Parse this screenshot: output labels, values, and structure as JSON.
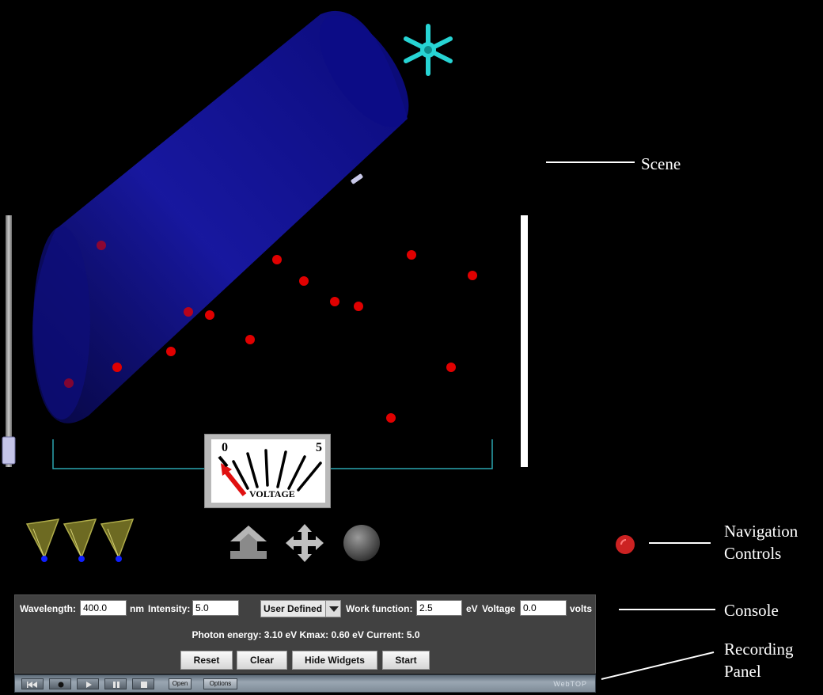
{
  "annotations": {
    "scene": "Scene",
    "navigation_line1": "Navigation",
    "navigation_line2": "Controls",
    "console": "Console",
    "recording_line1": "Recording",
    "recording_line2": "Panel"
  },
  "meter": {
    "min_label": "0",
    "max_label": "5",
    "caption": "VOLTAGE",
    "value": 0.0
  },
  "console": {
    "wavelength_label": "Wavelength:",
    "wavelength_value": "400.0",
    "wavelength_unit": "nm",
    "intensity_label": "Intensity:",
    "intensity_value": "5.0",
    "material_selected": "User Defined",
    "work_function_label": "Work function:",
    "work_function_value": "2.5",
    "work_function_unit": "eV",
    "voltage_label": "Voltage",
    "voltage_value": "0.0",
    "voltage_unit": "volts",
    "readout": "Photon energy: 3.10  eV Kmax: 0.60  eV Current: 5.0",
    "buttons": {
      "reset": "Reset",
      "clear": "Clear",
      "hide_widgets": "Hide Widgets",
      "start": "Start"
    }
  },
  "recorder": {
    "open_label": "Open",
    "options_label": "Options",
    "brand": "WebTOP"
  },
  "colors": {
    "lamp": "#0a0a8f",
    "electron": "#e00000",
    "widget_cyan": "#27d4d4",
    "console_bg": "#414141",
    "nav_red": "#cc2222"
  }
}
